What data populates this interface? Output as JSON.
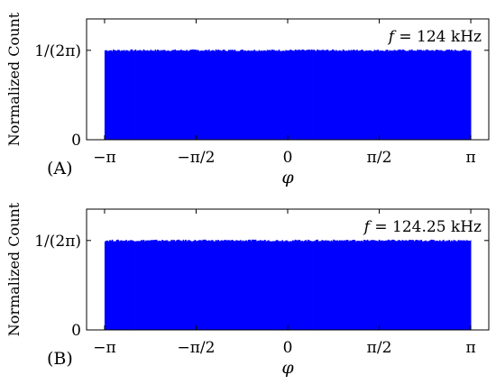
{
  "chart_data": [
    {
      "type": "bar",
      "panel_label": "(A)",
      "annotation": {
        "variable": "f",
        "text": " = 124 kHz"
      },
      "xlabel": "φ",
      "ylabel": "Normalized Count",
      "x_ticks": [
        {
          "value": -3.14159,
          "label": "−π"
        },
        {
          "value": -1.5708,
          "label": "−π/2"
        },
        {
          "value": 0,
          "label": "0"
        },
        {
          "value": 1.5708,
          "label": "π/2"
        },
        {
          "value": 3.14159,
          "label": "π"
        }
      ],
      "y_ticks": [
        {
          "value": 0,
          "label": "0"
        },
        {
          "value": 0.159155,
          "label": "1/(2π)"
        }
      ],
      "xlim": [
        -3.45,
        3.45
      ],
      "ylim": [
        0,
        0.215
      ],
      "histogram": {
        "x_range": [
          -3.14159,
          3.14159
        ],
        "value": 0.159155,
        "bin_width": 0.02,
        "color": "#0000ff"
      },
      "grid": false,
      "legend": "none"
    },
    {
      "type": "bar",
      "panel_label": "(B)",
      "annotation": {
        "variable": "f",
        "text": " = 124.25 kHz"
      },
      "xlabel": "φ",
      "ylabel": "Normalized Count",
      "x_ticks": [
        {
          "value": -3.14159,
          "label": "−π"
        },
        {
          "value": -1.5708,
          "label": "−π/2"
        },
        {
          "value": 0,
          "label": "0"
        },
        {
          "value": 1.5708,
          "label": "π/2"
        },
        {
          "value": 3.14159,
          "label": "π"
        }
      ],
      "y_ticks": [
        {
          "value": 0,
          "label": "0"
        },
        {
          "value": 0.159155,
          "label": "1/(2π)"
        }
      ],
      "xlim": [
        -3.45,
        3.45
      ],
      "ylim": [
        0,
        0.215
      ],
      "histogram": {
        "x_range": [
          -3.14159,
          3.14159
        ],
        "value": 0.159155,
        "bin_width": 0.02,
        "color": "#0000ff"
      },
      "grid": false,
      "legend": "none"
    }
  ]
}
